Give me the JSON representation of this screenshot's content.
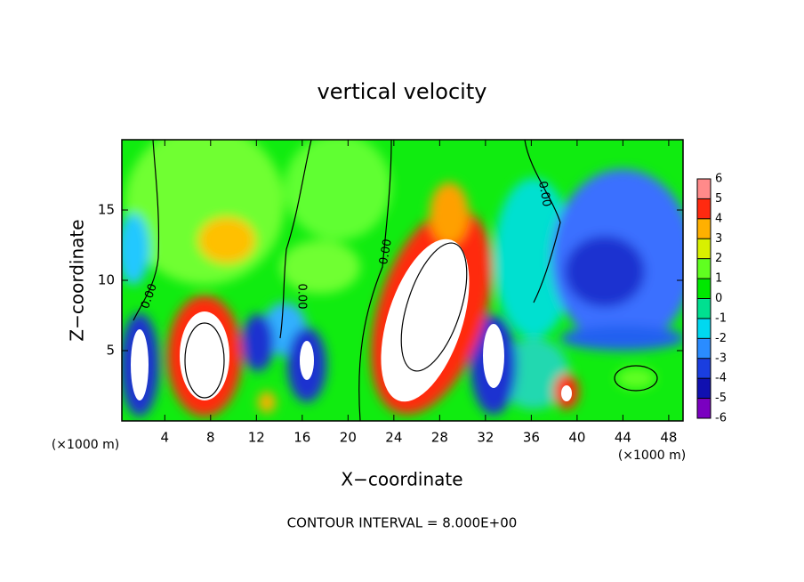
{
  "chart_data": {
    "type": "contour",
    "title": "vertical velocity",
    "x_label": "X−coordinate",
    "y_label": "Z−coordinate",
    "x_unit": "(×1000 m)",
    "y_unit": "(×1000 m)",
    "footer": "CONTOUR INTERVAL = 8.000E+00",
    "xlim": [
      0.25,
      49.25
    ],
    "ylim": [
      0,
      20
    ],
    "xticks": [
      4,
      8,
      12,
      16,
      20,
      24,
      28,
      32,
      36,
      40,
      44,
      48
    ],
    "yticks": [
      5,
      10,
      15
    ],
    "annotations": [
      "0.00",
      "0.00",
      "0.00",
      "0.00"
    ],
    "colorbar": {
      "ticks": [
        -6,
        -5,
        -4,
        -3,
        -2,
        -1,
        0,
        1,
        2,
        3,
        4,
        5,
        6
      ],
      "colors": [
        "#7a00c0",
        "#1010b0",
        "#1a3ee0",
        "#2a8cff",
        "#00d8f0",
        "#00e090",
        "#00e800",
        "#60ff20",
        "#d8f000",
        "#ffb000",
        "#ff2a10",
        "#ff8a8a"
      ]
    }
  }
}
